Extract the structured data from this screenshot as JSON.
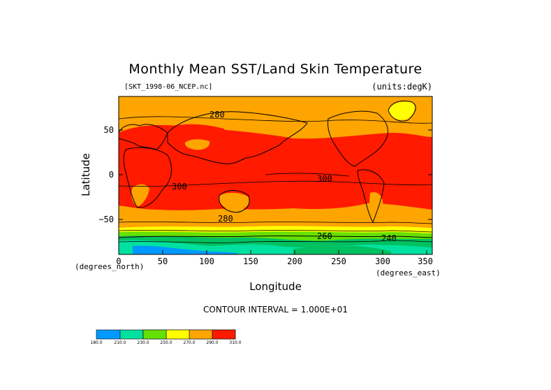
{
  "title": "Monthly Mean SST/Land Skin Temperature",
  "file_label": "[SKT_1998-06_NCEP.nc]",
  "units_label": "(units:degK)",
  "ylabel": "Latitude",
  "xlabel": "Longitude",
  "x_unit_note": "(degrees_north)",
  "x_unit_note_east": "(degrees_east)",
  "contour_interval": "CONTOUR INTERVAL = 1.000E+01",
  "x_ticks": [
    "0",
    "50",
    "100",
    "150",
    "200",
    "250",
    "300",
    "350"
  ],
  "y_ticks": [
    "50",
    "0",
    "−50"
  ],
  "contour_labels": [
    "280",
    "300",
    "300",
    "280",
    "260",
    "240"
  ],
  "colorbar": {
    "labels": [
      "180.0",
      "210.0",
      "230.0",
      "250.0",
      "270.0",
      "290.0",
      "310.0"
    ],
    "colors": [
      "#0099ff",
      "#00e0a0",
      "#00c060",
      "#66e000",
      "#ffff00",
      "#ffa500",
      "#ff1a00"
    ]
  },
  "colors": {
    "hot": "#ff1a00",
    "warm": "#ffa500",
    "mild": "#ffff00",
    "cool": "#66e000",
    "cold": "#00c060",
    "colder": "#00e0a0",
    "coldest": "#0099ff"
  }
}
